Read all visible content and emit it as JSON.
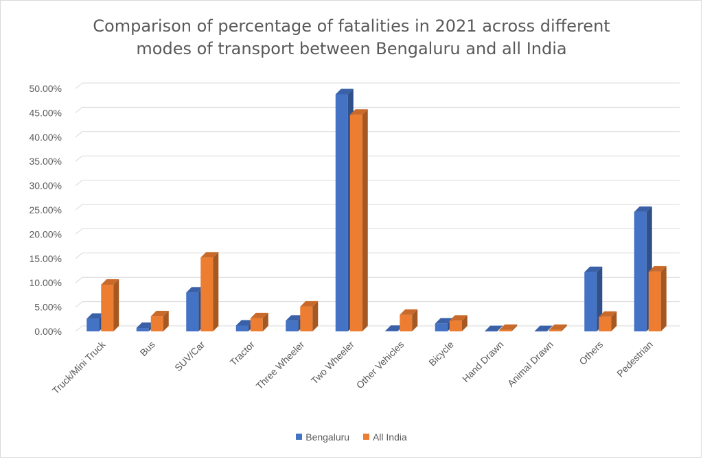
{
  "chart_data": {
    "type": "bar",
    "title": "Comparison of percentage of fatalities in 2021 across different modes of transport between Bengaluru and all India",
    "categories": [
      "Truck/Mini Truck",
      "Bus",
      "SUV/Car",
      "Tractor",
      "Three Wheeler",
      "Two Wheeler",
      "Other Vehicles",
      "Bicycle",
      "Hand Drawn",
      "Animal Drawn",
      "Others",
      "Pedestrian"
    ],
    "series": [
      {
        "name": "Bengaluru",
        "color": "#4472c4",
        "values": [
          2.6,
          0.7,
          8.0,
          1.2,
          2.2,
          48.8,
          0.1,
          1.6,
          0.05,
          0.05,
          12.2,
          24.6
        ]
      },
      {
        "name": "All India",
        "color": "#ed7d31",
        "values": [
          9.6,
          3.1,
          15.2,
          2.7,
          5.1,
          44.6,
          3.4,
          2.2,
          0.3,
          0.3,
          3.0,
          12.3
        ]
      }
    ],
    "yticks": [
      "0.00%",
      "5.00%",
      "10.00%",
      "15.00%",
      "20.00%",
      "25.00%",
      "30.00%",
      "35.00%",
      "40.00%",
      "45.00%",
      "50.00%"
    ],
    "ylim": [
      0,
      50
    ],
    "xlabel": "",
    "ylabel": "",
    "grid": true,
    "legend_position": "bottom"
  }
}
